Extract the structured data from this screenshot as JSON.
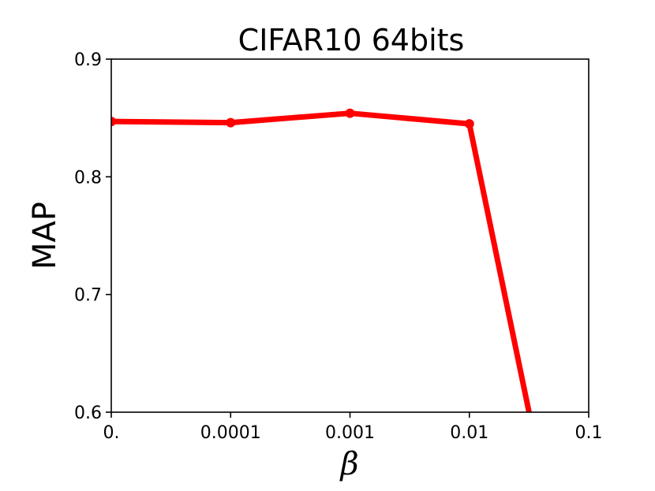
{
  "chart_data": {
    "type": "line",
    "title": "CIFAR10 64bits",
    "xlabel": "β",
    "ylabel": "MAP",
    "x_scale": "categorical",
    "categories": [
      "0.",
      "0.0001",
      "0.001",
      "0.01",
      "0.1"
    ],
    "ylim": [
      0.6,
      0.9
    ],
    "yticks": [
      "0.6",
      "0.7",
      "0.8",
      "0.9"
    ],
    "grid": false,
    "series": [
      {
        "color": "#ff0000",
        "points": [
          {
            "x": 0,
            "y": 0.847
          },
          {
            "x": 1,
            "y": 0.846
          },
          {
            "x": 2,
            "y": 0.854
          },
          {
            "x": 3,
            "y": 0.845
          },
          {
            "x": 3.5,
            "y": 0.6
          }
        ]
      }
    ]
  }
}
